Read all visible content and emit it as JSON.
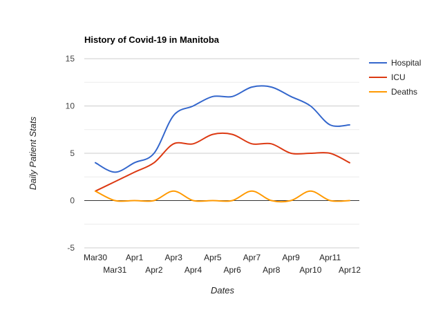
{
  "chart_data": {
    "type": "line",
    "title": "History of Covid-19 in Manitoba",
    "xlabel": "Dates",
    "ylabel": "Daily Patient Stats",
    "categories": [
      "Mar30",
      "Mar31",
      "Apr1",
      "Apr2",
      "Apr3",
      "Apr4",
      "Apr5",
      "Apr6",
      "Apr7",
      "Apr8",
      "Apr9",
      "Apr10",
      "Apr11",
      "Apr12"
    ],
    "ylim": [
      -5,
      15
    ],
    "yticks": [
      -5,
      0,
      5,
      10,
      15
    ],
    "grid": true,
    "smooth": true,
    "legend_position": "right",
    "series": [
      {
        "name": "Hospital",
        "color": "#3366cc",
        "values": [
          4,
          3,
          4,
          5,
          9,
          10,
          11,
          11,
          12,
          12,
          11,
          10,
          8,
          8
        ]
      },
      {
        "name": "ICU",
        "color": "#dc3912",
        "values": [
          1,
          2,
          3,
          4,
          6,
          6,
          7,
          7,
          6,
          6,
          5,
          5,
          5,
          4
        ]
      },
      {
        "name": "Deaths",
        "color": "#ff9900",
        "values": [
          1,
          0,
          0,
          0,
          1,
          0,
          0,
          0,
          1,
          0,
          0,
          1,
          0,
          0
        ]
      }
    ]
  }
}
